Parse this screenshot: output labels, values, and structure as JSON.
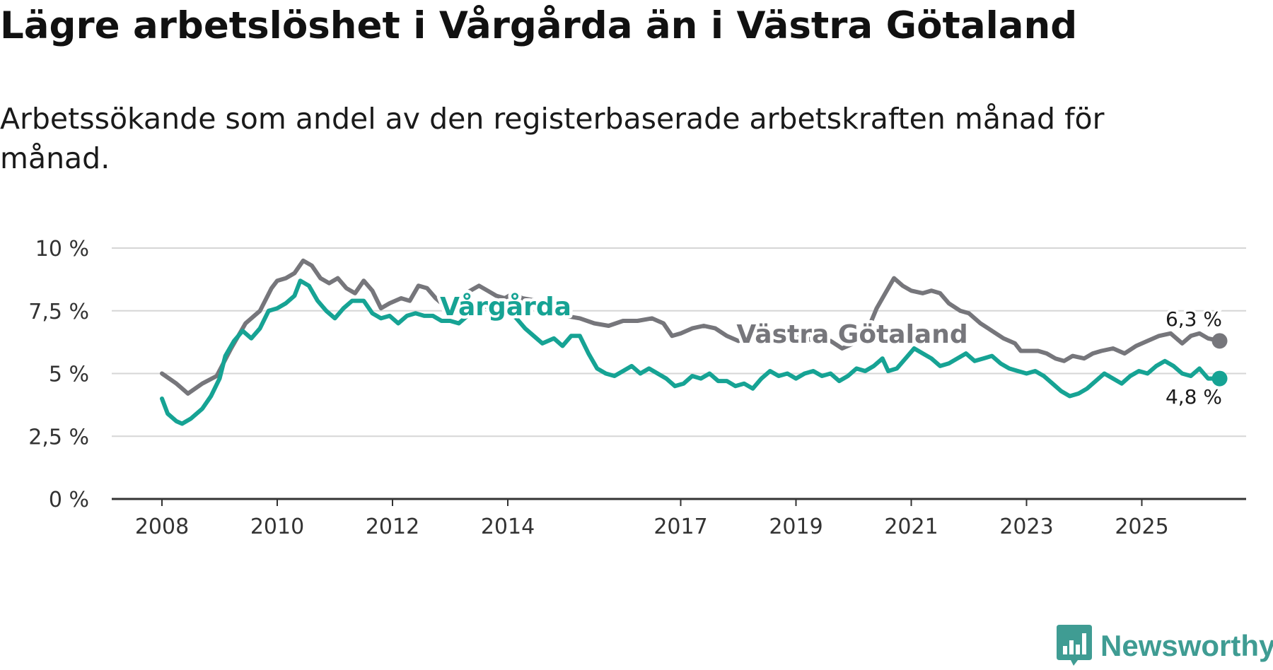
{
  "header": {
    "title": "Lägre arbetslöshet i Vårgårda än i Västra Götaland",
    "subtitle": "Arbetssökande som andel av den registerbaserade arbetskraften månad för månad."
  },
  "brand": {
    "name": "Newsworthy",
    "icon": "newsworthy-logo-icon",
    "color": "#3f9c93"
  },
  "chart_data": {
    "type": "line",
    "title": "Lägre arbetslöshet i Vårgårda än i Västra Götaland",
    "subtitle": "Arbetssökande som andel av den registerbaserade arbetskraften månad för månad.",
    "xlabel": "",
    "ylabel": "",
    "ylim": [
      0,
      10
    ],
    "xlim": [
      2008,
      2027
    ],
    "y_ticks": [
      0,
      2.5,
      5,
      7.5,
      10
    ],
    "y_tick_labels": [
      "0 %",
      "2,5 %",
      "5 %",
      "7,5 %",
      "10 %"
    ],
    "x_ticks": [
      2008,
      2010,
      2012,
      2014,
      2017,
      2019,
      2021,
      2023,
      2025
    ],
    "x_tick_labels": [
      "2008",
      "2010",
      "2012",
      "2014",
      "2017",
      "2019",
      "2021",
      "2023",
      "2025"
    ],
    "grid": true,
    "series": [
      {
        "name": "Västra Götaland",
        "color": "#76767b",
        "end_label": "6,3 %",
        "points": [
          [
            2008.0,
            5.0
          ],
          [
            2008.25,
            4.6
          ],
          [
            2008.45,
            4.2
          ],
          [
            2008.7,
            4.6
          ],
          [
            2008.95,
            4.9
          ],
          [
            2009.2,
            6.0
          ],
          [
            2009.45,
            7.0
          ],
          [
            2009.7,
            7.5
          ],
          [
            2009.9,
            8.4
          ],
          [
            2010.0,
            8.7
          ],
          [
            2010.15,
            8.8
          ],
          [
            2010.3,
            9.0
          ],
          [
            2010.45,
            9.5
          ],
          [
            2010.6,
            9.3
          ],
          [
            2010.75,
            8.8
          ],
          [
            2010.9,
            8.6
          ],
          [
            2011.05,
            8.8
          ],
          [
            2011.2,
            8.4
          ],
          [
            2011.35,
            8.2
          ],
          [
            2011.5,
            8.7
          ],
          [
            2011.65,
            8.3
          ],
          [
            2011.8,
            7.6
          ],
          [
            2011.95,
            7.8
          ],
          [
            2012.15,
            8.0
          ],
          [
            2012.3,
            7.9
          ],
          [
            2012.45,
            8.5
          ],
          [
            2012.6,
            8.4
          ],
          [
            2012.75,
            8.0
          ],
          [
            2012.9,
            7.7
          ],
          [
            2013.05,
            7.8
          ],
          [
            2013.2,
            8.1
          ],
          [
            2013.35,
            8.3
          ],
          [
            2013.5,
            8.5
          ],
          [
            2013.65,
            8.3
          ],
          [
            2013.8,
            8.1
          ],
          [
            2013.95,
            8.0
          ],
          [
            2014.1,
            8.2
          ],
          [
            2014.25,
            8.0
          ],
          [
            2014.5,
            7.9
          ],
          [
            2014.75,
            7.6
          ],
          [
            2015.0,
            7.3
          ],
          [
            2015.25,
            7.2
          ],
          [
            2015.5,
            7.0
          ],
          [
            2015.75,
            6.9
          ],
          [
            2016.0,
            7.1
          ],
          [
            2016.25,
            7.1
          ],
          [
            2016.5,
            7.2
          ],
          [
            2016.7,
            7.0
          ],
          [
            2016.85,
            6.5
          ],
          [
            2017.0,
            6.6
          ],
          [
            2017.2,
            6.8
          ],
          [
            2017.4,
            6.9
          ],
          [
            2017.6,
            6.8
          ],
          [
            2017.8,
            6.5
          ],
          [
            2018.0,
            6.3
          ],
          [
            2018.2,
            6.5
          ],
          [
            2018.4,
            6.4
          ],
          [
            2018.6,
            6.6
          ],
          [
            2018.8,
            6.4
          ],
          [
            2019.0,
            6.5
          ],
          [
            2019.2,
            6.4
          ],
          [
            2019.4,
            6.2
          ],
          [
            2019.6,
            6.3
          ],
          [
            2019.8,
            6.0
          ],
          [
            2020.0,
            6.2
          ],
          [
            2020.2,
            6.5
          ],
          [
            2020.4,
            7.6
          ],
          [
            2020.55,
            8.2
          ],
          [
            2020.7,
            8.8
          ],
          [
            2020.85,
            8.5
          ],
          [
            2021.0,
            8.3
          ],
          [
            2021.2,
            8.2
          ],
          [
            2021.35,
            8.3
          ],
          [
            2021.5,
            8.2
          ],
          [
            2021.65,
            7.8
          ],
          [
            2021.85,
            7.5
          ],
          [
            2022.0,
            7.4
          ],
          [
            2022.2,
            7.0
          ],
          [
            2022.4,
            6.7
          ],
          [
            2022.6,
            6.4
          ],
          [
            2022.8,
            6.2
          ],
          [
            2022.9,
            5.9
          ],
          [
            2023.0,
            5.9
          ],
          [
            2023.2,
            5.9
          ],
          [
            2023.35,
            5.8
          ],
          [
            2023.5,
            5.6
          ],
          [
            2023.65,
            5.5
          ],
          [
            2023.8,
            5.7
          ],
          [
            2024.0,
            5.6
          ],
          [
            2024.15,
            5.8
          ],
          [
            2024.3,
            5.9
          ],
          [
            2024.5,
            6.0
          ],
          [
            2024.7,
            5.8
          ],
          [
            2024.9,
            6.1
          ],
          [
            2025.1,
            6.3
          ],
          [
            2025.3,
            6.5
          ],
          [
            2025.5,
            6.6
          ],
          [
            2025.7,
            6.2
          ],
          [
            2025.85,
            6.5
          ],
          [
            2026.0,
            6.6
          ],
          [
            2026.15,
            6.4
          ],
          [
            2026.35,
            6.3
          ]
        ]
      },
      {
        "name": "Vårgårda",
        "color": "#16a394",
        "end_label": "4,8 %",
        "points": [
          [
            2008.0,
            4.0
          ],
          [
            2008.1,
            3.4
          ],
          [
            2008.25,
            3.1
          ],
          [
            2008.35,
            3.0
          ],
          [
            2008.5,
            3.2
          ],
          [
            2008.7,
            3.6
          ],
          [
            2008.85,
            4.1
          ],
          [
            2009.0,
            4.8
          ],
          [
            2009.1,
            5.7
          ],
          [
            2009.25,
            6.3
          ],
          [
            2009.4,
            6.7
          ],
          [
            2009.55,
            6.4
          ],
          [
            2009.7,
            6.8
          ],
          [
            2009.85,
            7.5
          ],
          [
            2010.0,
            7.6
          ],
          [
            2010.15,
            7.8
          ],
          [
            2010.3,
            8.1
          ],
          [
            2010.4,
            8.7
          ],
          [
            2010.55,
            8.5
          ],
          [
            2010.7,
            7.9
          ],
          [
            2010.85,
            7.5
          ],
          [
            2011.0,
            7.2
          ],
          [
            2011.15,
            7.6
          ],
          [
            2011.3,
            7.9
          ],
          [
            2011.5,
            7.9
          ],
          [
            2011.65,
            7.4
          ],
          [
            2011.8,
            7.2
          ],
          [
            2011.95,
            7.3
          ],
          [
            2012.1,
            7.0
          ],
          [
            2012.25,
            7.3
          ],
          [
            2012.4,
            7.4
          ],
          [
            2012.55,
            7.3
          ],
          [
            2012.7,
            7.3
          ],
          [
            2012.85,
            7.1
          ],
          [
            2013.0,
            7.1
          ],
          [
            2013.15,
            7.0
          ],
          [
            2013.3,
            7.3
          ],
          [
            2013.45,
            7.5
          ],
          [
            2013.6,
            7.7
          ],
          [
            2013.75,
            7.5
          ],
          [
            2013.9,
            7.3
          ],
          [
            2014.0,
            7.5
          ],
          [
            2014.15,
            7.2
          ],
          [
            2014.3,
            6.8
          ],
          [
            2014.45,
            6.5
          ],
          [
            2014.6,
            6.2
          ],
          [
            2014.8,
            6.4
          ],
          [
            2014.95,
            6.1
          ],
          [
            2015.1,
            6.5
          ],
          [
            2015.25,
            6.5
          ],
          [
            2015.4,
            5.8
          ],
          [
            2015.55,
            5.2
          ],
          [
            2015.7,
            5.0
          ],
          [
            2015.85,
            4.9
          ],
          [
            2016.0,
            5.1
          ],
          [
            2016.15,
            5.3
          ],
          [
            2016.3,
            5.0
          ],
          [
            2016.45,
            5.2
          ],
          [
            2016.6,
            5.0
          ],
          [
            2016.75,
            4.8
          ],
          [
            2016.9,
            4.5
          ],
          [
            2017.05,
            4.6
          ],
          [
            2017.2,
            4.9
          ],
          [
            2017.35,
            4.8
          ],
          [
            2017.5,
            5.0
          ],
          [
            2017.65,
            4.7
          ],
          [
            2017.8,
            4.7
          ],
          [
            2017.95,
            4.5
          ],
          [
            2018.1,
            4.6
          ],
          [
            2018.25,
            4.4
          ],
          [
            2018.4,
            4.8
          ],
          [
            2018.55,
            5.1
          ],
          [
            2018.7,
            4.9
          ],
          [
            2018.85,
            5.0
          ],
          [
            2019.0,
            4.8
          ],
          [
            2019.15,
            5.0
          ],
          [
            2019.3,
            5.1
          ],
          [
            2019.45,
            4.9
          ],
          [
            2019.6,
            5.0
          ],
          [
            2019.75,
            4.7
          ],
          [
            2019.9,
            4.9
          ],
          [
            2020.05,
            5.2
          ],
          [
            2020.2,
            5.1
          ],
          [
            2020.35,
            5.3
          ],
          [
            2020.5,
            5.6
          ],
          [
            2020.6,
            5.1
          ],
          [
            2020.75,
            5.2
          ],
          [
            2020.9,
            5.6
          ],
          [
            2021.05,
            6.0
          ],
          [
            2021.2,
            5.8
          ],
          [
            2021.35,
            5.6
          ],
          [
            2021.5,
            5.3
          ],
          [
            2021.65,
            5.4
          ],
          [
            2021.8,
            5.6
          ],
          [
            2021.95,
            5.8
          ],
          [
            2022.1,
            5.5
          ],
          [
            2022.25,
            5.6
          ],
          [
            2022.4,
            5.7
          ],
          [
            2022.55,
            5.4
          ],
          [
            2022.7,
            5.2
          ],
          [
            2022.85,
            5.1
          ],
          [
            2023.0,
            5.0
          ],
          [
            2023.15,
            5.1
          ],
          [
            2023.3,
            4.9
          ],
          [
            2023.45,
            4.6
          ],
          [
            2023.6,
            4.3
          ],
          [
            2023.75,
            4.1
          ],
          [
            2023.9,
            4.2
          ],
          [
            2024.05,
            4.4
          ],
          [
            2024.2,
            4.7
          ],
          [
            2024.35,
            5.0
          ],
          [
            2024.5,
            4.8
          ],
          [
            2024.65,
            4.6
          ],
          [
            2024.8,
            4.9
          ],
          [
            2024.95,
            5.1
          ],
          [
            2025.1,
            5.0
          ],
          [
            2025.25,
            5.3
          ],
          [
            2025.4,
            5.5
          ],
          [
            2025.55,
            5.3
          ],
          [
            2025.7,
            5.0
          ],
          [
            2025.85,
            4.9
          ],
          [
            2026.0,
            5.2
          ],
          [
            2026.15,
            4.8
          ],
          [
            2026.35,
            4.8
          ]
        ]
      }
    ]
  }
}
